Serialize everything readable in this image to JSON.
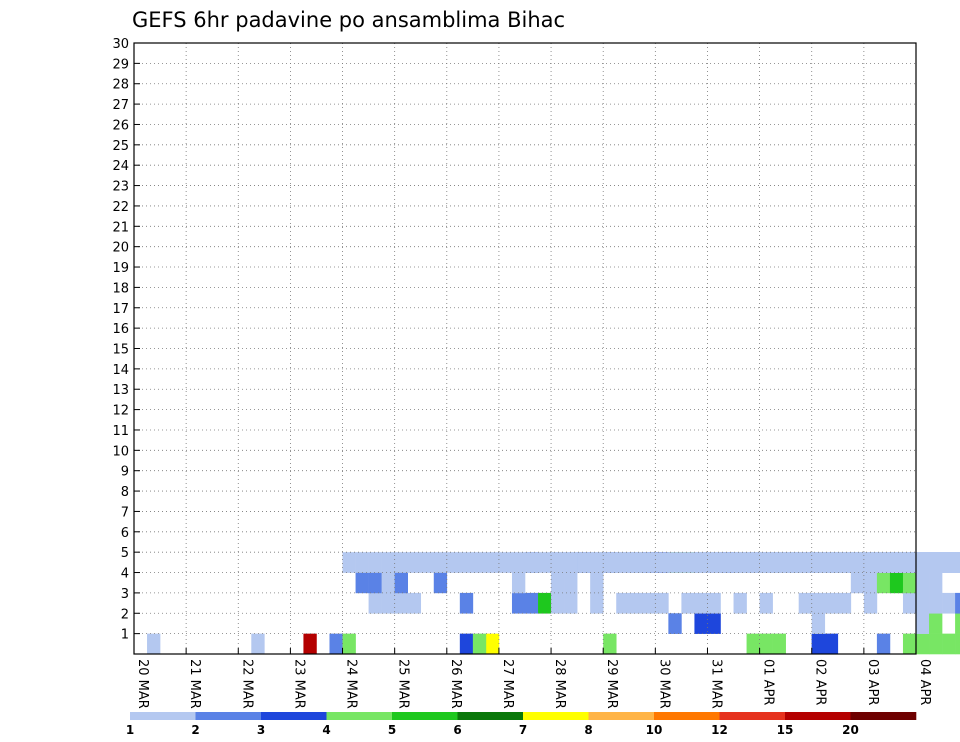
{
  "chart_data": {
    "type": "heatmap",
    "title": "GEFS 6hr padavine po ansamblima Bihac",
    "xlabel": "",
    "ylabel": "",
    "grid": true,
    "x_steps_per_day": 4,
    "x_tick_labels": [
      "20 MAR",
      "21 MAR",
      "22 MAR",
      "23 MAR",
      "24 MAR",
      "25 MAR",
      "26 MAR",
      "27 MAR",
      "28 MAR",
      "29 MAR",
      "30 MAR",
      "31 MAR",
      "01 APR",
      "02 APR",
      "03 APR",
      "04 APR"
    ],
    "y_tick_labels": [
      "1",
      "2",
      "3",
      "4",
      "5",
      "6",
      "7",
      "8",
      "9",
      "10",
      "11",
      "12",
      "13",
      "14",
      "15",
      "16",
      "17",
      "18",
      "19",
      "20",
      "21",
      "22",
      "23",
      "24",
      "25",
      "26",
      "27",
      "28",
      "29",
      "30"
    ],
    "ylim": [
      0,
      30
    ],
    "colorbar": {
      "labels": [
        "1",
        "2",
        "3",
        "4",
        "5",
        "6",
        "7",
        "8",
        "10",
        "12",
        "15",
        "20"
      ],
      "colors": [
        "#b4c8f0",
        "#5a82e6",
        "#1e46dc",
        "#78e664",
        "#1ec81e",
        "#0a780a",
        "#ffff00",
        "#ffb446",
        "#ff7800",
        "#e6321e",
        "#b40000",
        "#6e0000"
      ]
    },
    "cells": [
      [
        47,
        0,
        3
      ],
      [
        48,
        0,
        3
      ],
      [
        52,
        0,
        2
      ],
      [
        53,
        0,
        2
      ],
      [
        59,
        0,
        3
      ],
      [
        64,
        0,
        1
      ],
      [
        60,
        0,
        3
      ],
      [
        61,
        0,
        3
      ],
      [
        62,
        0,
        3
      ],
      [
        63,
        0,
        3
      ],
      [
        66,
        0,
        3
      ],
      [
        36,
        0,
        3
      ],
      [
        49,
        0,
        3
      ],
      [
        25,
        0,
        2
      ],
      [
        27,
        0,
        6
      ],
      [
        26,
        0,
        3
      ],
      [
        13,
        0,
        10
      ],
      [
        15,
        0,
        1
      ],
      [
        16,
        0,
        3
      ],
      [
        9,
        0,
        0
      ],
      [
        1,
        0,
        0
      ],
      [
        57,
        0,
        1
      ],
      [
        52,
        0,
        2
      ],
      [
        41,
        1,
        1
      ],
      [
        52,
        1,
        0
      ],
      [
        63,
        1,
        3
      ],
      [
        64,
        1,
        3
      ],
      [
        65,
        1,
        4
      ],
      [
        66,
        1,
        0
      ],
      [
        67,
        1,
        1
      ],
      [
        68,
        1,
        0
      ],
      [
        43,
        1,
        2
      ],
      [
        44,
        1,
        2
      ],
      [
        60,
        1,
        0
      ],
      [
        61,
        1,
        3
      ],
      [
        29,
        2,
        1
      ],
      [
        30,
        2,
        1
      ],
      [
        31,
        2,
        4
      ],
      [
        32,
        2,
        0
      ],
      [
        33,
        2,
        0
      ],
      [
        25,
        2,
        1
      ],
      [
        18,
        2,
        0
      ],
      [
        19,
        2,
        0
      ],
      [
        20,
        2,
        0
      ],
      [
        21,
        2,
        0
      ],
      [
        35,
        2,
        0
      ],
      [
        37,
        2,
        0
      ],
      [
        38,
        2,
        0
      ],
      [
        39,
        2,
        0
      ],
      [
        40,
        2,
        0
      ],
      [
        42,
        2,
        0
      ],
      [
        43,
        2,
        0
      ],
      [
        44,
        2,
        0
      ],
      [
        46,
        2,
        0
      ],
      [
        48,
        2,
        0
      ],
      [
        51,
        2,
        0
      ],
      [
        52,
        2,
        0
      ],
      [
        53,
        2,
        0
      ],
      [
        54,
        2,
        0
      ],
      [
        56,
        2,
        0
      ],
      [
        59,
        2,
        0
      ],
      [
        60,
        2,
        0
      ],
      [
        61,
        2,
        0
      ],
      [
        62,
        2,
        0
      ],
      [
        64,
        2,
        0
      ],
      [
        67,
        2,
        0
      ],
      [
        63,
        2,
        1
      ],
      [
        32,
        3,
        0
      ],
      [
        33,
        3,
        0
      ],
      [
        29,
        3,
        0
      ],
      [
        35,
        3,
        0
      ],
      [
        17,
        3,
        1
      ],
      [
        18,
        3,
        1
      ],
      [
        19,
        3,
        0
      ],
      [
        20,
        3,
        1
      ],
      [
        23,
        3,
        1
      ],
      [
        55,
        3,
        0
      ],
      [
        56,
        3,
        0
      ],
      [
        57,
        3,
        3
      ],
      [
        58,
        3,
        4
      ],
      [
        59,
        3,
        3
      ],
      [
        60,
        3,
        0
      ],
      [
        61,
        3,
        0
      ],
      [
        66,
        3,
        0
      ],
      [
        67,
        3,
        0
      ],
      [
        68,
        3,
        0
      ],
      [
        36,
        4,
        1
      ],
      [
        37,
        4,
        0
      ],
      [
        38,
        4,
        0
      ],
      [
        39,
        4,
        0
      ],
      [
        40,
        4,
        0
      ],
      [
        41,
        4,
        0
      ],
      [
        42,
        4,
        0
      ],
      [
        43,
        4,
        0
      ],
      [
        46,
        4,
        0
      ],
      [
        47,
        4,
        0
      ],
      [
        48,
        4,
        0
      ],
      [
        49,
        4,
        0
      ],
      [
        50,
        4,
        0
      ],
      [
        51,
        4,
        0
      ],
      [
        52,
        4,
        0
      ],
      [
        53,
        4,
        0
      ],
      [
        54,
        4,
        0
      ],
      [
        55,
        4,
        0
      ],
      [
        56,
        4,
        0
      ],
      [
        57,
        4,
        0
      ],
      [
        58,
        4,
        0
      ],
      [
        59,
        4,
        0
      ],
      [
        60,
        4,
        0
      ],
      [
        61,
        4,
        0
      ],
      [
        62,
        4,
        0
      ],
      [
        63,
        4,
        0
      ],
      [
        64,
        4,
        0
      ],
      [
        65,
        4,
        0
      ],
      [
        66,
        4,
        0
      ],
      [
        67,
        4,
        0
      ],
      [
        68,
        4,
        0
      ],
      [
        38,
        4,
        0
      ],
      [
        39,
        4,
        0
      ],
      [
        40,
        4,
        1
      ],
      [
        41,
        4,
        0
      ],
      [
        45,
        4,
        0
      ],
      [
        48,
        4,
        0
      ],
      [
        52,
        4,
        0
      ],
      [
        53,
        4,
        0
      ],
      [
        54,
        4,
        0
      ],
      [
        55,
        4,
        0
      ],
      [
        56,
        4,
        0
      ],
      [
        60,
        4,
        0
      ],
      [
        61,
        4,
        0
      ],
      [
        62,
        4,
        1
      ],
      [
        63,
        4,
        2
      ],
      [
        64,
        4,
        3
      ],
      [
        65,
        4,
        1
      ],
      [
        67,
        4,
        0
      ],
      [
        68,
        4,
        0
      ],
      [
        70,
        4,
        0
      ],
      [
        71,
        4,
        0
      ],
      [
        42,
        4,
        0
      ],
      [
        43,
        4,
        0
      ],
      [
        44,
        4,
        0
      ],
      [
        45,
        4,
        0
      ],
      [
        46,
        4,
        0
      ],
      [
        49,
        4,
        0
      ],
      [
        50,
        4,
        0
      ],
      [
        51,
        4,
        0
      ],
      [
        57,
        4,
        0
      ],
      [
        58,
        4,
        0
      ],
      [
        59,
        4,
        0
      ],
      [
        47,
        4,
        0
      ],
      [
        48,
        4,
        0
      ],
      [
        50,
        4,
        0
      ],
      [
        56,
        4,
        0
      ],
      [
        63,
        4,
        0
      ],
      [
        64,
        4,
        0
      ],
      [
        65,
        4,
        0
      ],
      [
        59,
        4,
        0
      ],
      [
        61,
        4,
        0
      ],
      [
        62,
        4,
        0
      ],
      [
        64,
        4,
        0
      ],
      [
        66,
        4,
        0
      ],
      [
        67,
        4,
        0
      ],
      [
        68,
        4,
        0
      ],
      [
        30,
        4,
        1
      ],
      [
        32,
        4,
        0
      ],
      [
        33,
        4,
        0
      ],
      [
        34,
        4,
        1
      ],
      [
        35,
        4,
        0
      ],
      [
        37,
        4,
        0
      ],
      [
        38,
        4,
        0
      ],
      [
        39,
        4,
        1
      ],
      [
        40,
        4,
        2
      ],
      [
        41,
        4,
        3
      ],
      [
        42,
        4,
        3
      ],
      [
        43,
        4,
        0
      ],
      [
        44,
        4,
        0
      ],
      [
        45,
        4,
        0
      ],
      [
        47,
        4,
        0
      ],
      [
        48,
        4,
        0
      ],
      [
        49,
        4,
        0
      ],
      [
        51,
        4,
        1
      ],
      [
        45,
        4,
        1
      ],
      [
        46,
        4,
        0
      ],
      [
        48,
        4,
        0
      ],
      [
        50,
        4,
        0
      ],
      [
        52,
        4,
        0
      ],
      [
        53,
        4,
        0
      ],
      [
        55,
        4,
        0
      ],
      [
        56,
        4,
        0
      ],
      [
        57,
        4,
        0
      ],
      [
        58,
        4,
        0
      ],
      [
        60,
        4,
        0
      ],
      [
        61,
        4,
        0
      ],
      [
        62,
        4,
        0
      ],
      [
        63,
        4,
        0
      ],
      [
        65,
        4,
        0
      ],
      [
        46,
        4,
        0
      ],
      [
        48,
        4,
        0
      ],
      [
        49,
        4,
        0
      ],
      [
        50,
        4,
        0
      ],
      [
        53,
        4,
        0
      ],
      [
        55,
        4,
        0
      ],
      [
        56,
        4,
        0
      ],
      [
        57,
        4,
        0
      ],
      [
        58,
        4,
        0
      ],
      [
        59,
        4,
        0
      ],
      [
        60,
        4,
        0
      ],
      [
        62,
        4,
        0
      ],
      [
        63,
        4,
        0
      ],
      [
        64,
        4,
        0
      ],
      [
        65,
        4,
        0
      ],
      [
        66,
        4,
        0
      ],
      [
        67,
        4,
        0
      ],
      [
        68,
        4,
        0
      ],
      [
        47,
        4,
        0
      ],
      [
        50,
        4,
        0
      ],
      [
        51,
        4,
        0
      ],
      [
        52,
        4,
        0
      ],
      [
        54,
        4,
        0
      ],
      [
        55,
        4,
        0
      ],
      [
        56,
        4,
        0
      ],
      [
        59,
        4,
        0
      ],
      [
        60,
        4,
        0
      ],
      [
        61,
        4,
        0
      ],
      [
        63,
        4,
        0
      ],
      [
        64,
        4,
        0
      ],
      [
        65,
        4,
        0
      ],
      [
        66,
        4,
        0
      ],
      [
        48,
        4,
        0
      ],
      [
        49,
        4,
        0
      ],
      [
        51,
        4,
        0
      ],
      [
        53,
        4,
        0
      ],
      [
        54,
        4,
        0
      ],
      [
        56,
        4,
        0
      ],
      [
        57,
        4,
        0
      ],
      [
        60,
        4,
        0
      ],
      [
        61,
        4,
        0
      ],
      [
        62,
        4,
        0
      ],
      [
        50,
        4,
        0
      ],
      [
        53,
        4,
        0
      ],
      [
        54,
        4,
        0
      ],
      [
        55,
        4,
        0
      ],
      [
        57,
        4,
        0
      ],
      [
        58,
        4,
        0
      ],
      [
        59,
        4,
        0
      ],
      [
        60,
        4,
        0
      ],
      [
        51,
        4,
        0
      ],
      [
        52,
        4,
        0
      ],
      [
        56,
        4,
        0
      ],
      [
        57,
        4,
        0
      ],
      [
        59,
        4,
        0
      ],
      [
        52,
        4,
        0
      ],
      [
        55,
        4,
        0
      ],
      [
        56,
        4,
        0
      ],
      [
        58,
        4,
        0
      ],
      [
        54,
        4,
        0
      ],
      [
        57,
        4,
        0
      ],
      [
        63,
        4,
        0
      ],
      [
        64,
        4,
        1
      ],
      [
        65,
        4,
        2
      ],
      [
        58,
        4,
        0
      ],
      [
        59,
        4,
        0
      ],
      [
        62,
        4,
        0
      ],
      [
        16,
        4,
        0
      ],
      [
        17,
        4,
        0
      ],
      [
        18,
        4,
        0
      ],
      [
        19,
        4,
        0
      ],
      [
        20,
        4,
        0
      ],
      [
        21,
        4,
        0
      ],
      [
        22,
        4,
        0
      ],
      [
        23,
        4,
        0
      ],
      [
        24,
        4,
        0
      ],
      [
        25,
        4,
        0
      ],
      [
        26,
        4,
        0
      ],
      [
        27,
        4,
        0
      ],
      [
        28,
        4,
        0
      ],
      [
        29,
        4,
        0
      ],
      [
        30,
        4,
        0
      ],
      [
        31,
        4,
        0
      ],
      [
        32,
        4,
        0
      ],
      [
        33,
        4,
        0
      ],
      [
        34,
        4,
        0
      ],
      [
        35,
        4,
        0
      ],
      [
        36,
        4,
        0
      ],
      [
        37,
        4,
        0
      ],
      [
        38,
        4,
        0
      ],
      [
        39,
        4,
        0
      ],
      [
        40,
        4,
        0
      ],
      [
        41,
        4,
        0
      ],
      [
        42,
        4,
        0
      ],
      [
        43,
        4,
        0
      ],
      [
        44,
        4,
        0
      ],
      [
        45,
        4,
        0
      ],
      [
        46,
        4,
        0
      ],
      [
        47,
        4,
        0
      ],
      [
        48,
        4,
        0
      ],
      [
        49,
        4,
        0
      ],
      [
        50,
        4,
        0
      ],
      [
        51,
        4,
        0
      ],
      [
        52,
        4,
        0
      ],
      [
        53,
        4,
        0
      ],
      [
        54,
        4,
        0
      ],
      [
        55,
        4,
        0
      ],
      [
        56,
        4,
        0
      ],
      [
        57,
        4,
        0
      ],
      [
        58,
        4,
        0
      ],
      [
        59,
        4,
        0
      ],
      [
        60,
        4,
        0
      ],
      [
        61,
        4,
        0
      ],
      [
        62,
        4,
        0
      ]
    ]
  }
}
